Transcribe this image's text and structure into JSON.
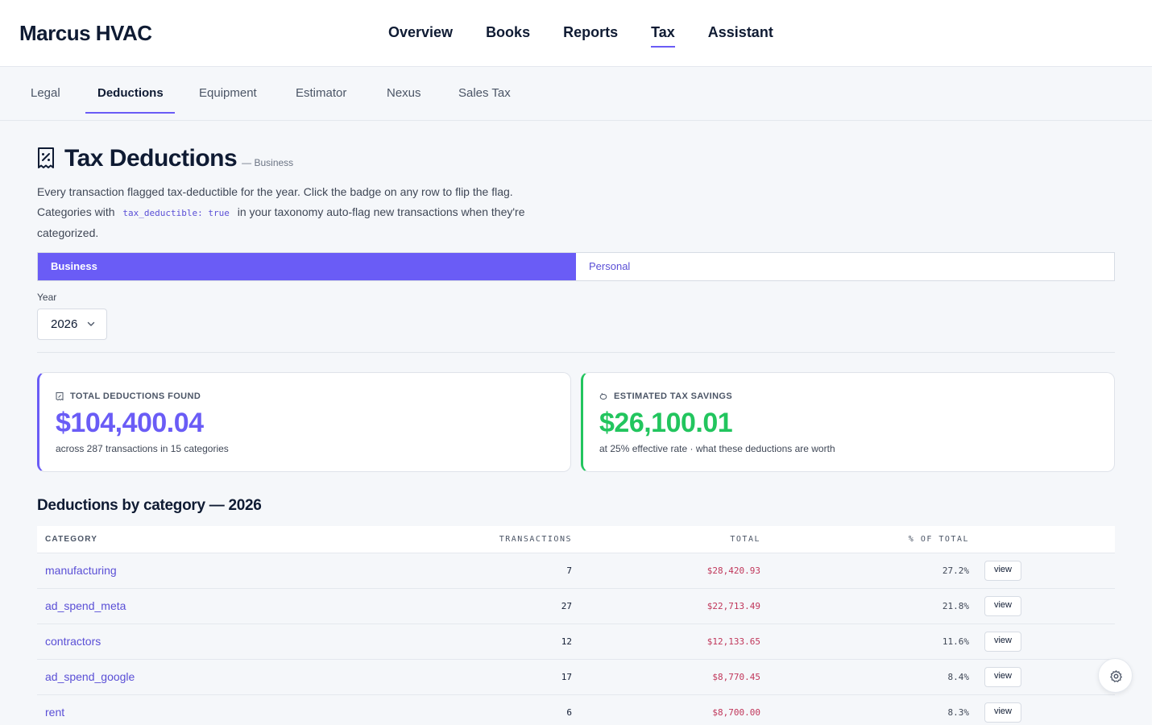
{
  "app": {
    "brand": "Marcus HVAC"
  },
  "main_nav": [
    {
      "label": "Overview",
      "active": false
    },
    {
      "label": "Books",
      "active": false
    },
    {
      "label": "Reports",
      "active": false
    },
    {
      "label": "Tax",
      "active": true
    },
    {
      "label": "Assistant",
      "active": false
    }
  ],
  "sub_nav": [
    {
      "label": "Legal",
      "active": false
    },
    {
      "label": "Deductions",
      "active": true
    },
    {
      "label": "Equipment",
      "active": false
    },
    {
      "label": "Estimator",
      "active": false
    },
    {
      "label": "Nexus",
      "active": false
    },
    {
      "label": "Sales Tax",
      "active": false
    }
  ],
  "page": {
    "title": "Tax Deductions",
    "title_suffix": "— Business",
    "title_icon": "receipt-icon",
    "description_1": "Every transaction flagged tax-deductible for the year. Click the badge on any row to flip the flag. Categories with",
    "description_code": "tax_deductible: true",
    "description_2": "in your taxonomy auto-flag new transactions when they're categorized."
  },
  "segment": {
    "business": "Business",
    "personal": "Personal",
    "selected": "Business"
  },
  "year": {
    "label": "Year",
    "value": "2026"
  },
  "cards": {
    "deductions": {
      "label": "TOTAL DEDUCTIONS FOUND",
      "value": "$104,400.04",
      "sub": "across 287 transactions in 15 categories"
    },
    "savings": {
      "label": "ESTIMATED TAX SAVINGS",
      "value": "$26,100.01",
      "sub": "at 25% effective rate · what these deductions are worth"
    }
  },
  "table": {
    "title": "Deductions by category — 2026",
    "headers": {
      "category": "CATEGORY",
      "transactions": "TRANSACTIONS",
      "total": "TOTAL",
      "pct": "% OF TOTAL"
    },
    "rows": [
      {
        "category": "manufacturing",
        "transactions": "7",
        "total": "$28,420.93",
        "pct": "27.2%",
        "action": "view"
      },
      {
        "category": "ad_spend_meta",
        "transactions": "27",
        "total": "$22,713.49",
        "pct": "21.8%",
        "action": "view"
      },
      {
        "category": "contractors",
        "transactions": "12",
        "total": "$12,133.65",
        "pct": "11.6%",
        "action": "view"
      },
      {
        "category": "ad_spend_google",
        "transactions": "17",
        "total": "$8,770.45",
        "pct": "8.4%",
        "action": "view"
      },
      {
        "category": "rent",
        "transactions": "6",
        "total": "$8,700.00",
        "pct": "8.3%",
        "action": "view"
      }
    ]
  },
  "colors": {
    "accent": "#6a5cf6",
    "success": "#22c55e",
    "amount": "#c0365a"
  }
}
